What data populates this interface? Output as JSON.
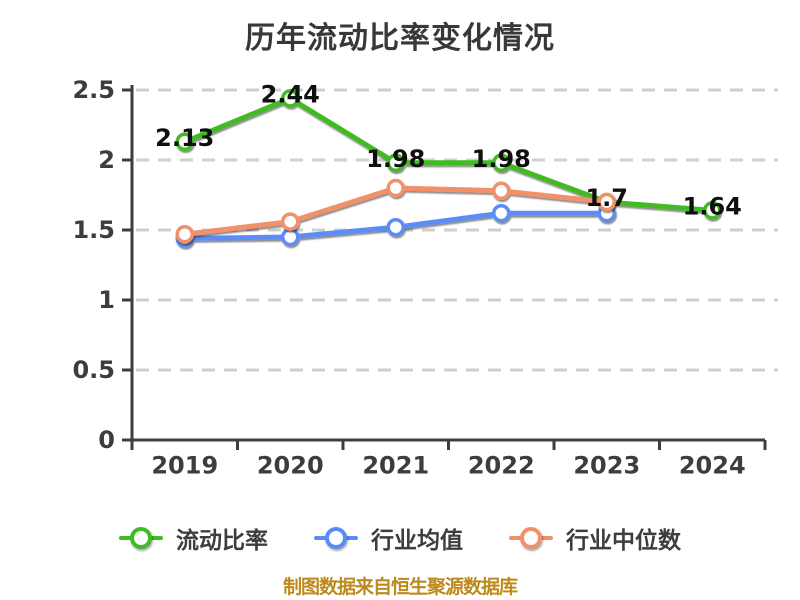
{
  "title": "历年流动比率变化情况",
  "footer": {
    "text": "制图数据来自恒生聚源数据库",
    "color": "#bd8a1e"
  },
  "chart_data": {
    "type": "line",
    "title": "历年流动比率变化情况",
    "categories": [
      "2019",
      "2020",
      "2021",
      "2022",
      "2023",
      "2024"
    ],
    "series": [
      {
        "name": "流动比率",
        "color": "#3fbc23",
        "values": [
          2.13,
          2.44,
          1.98,
          1.98,
          1.7,
          1.64
        ],
        "data_labels": [
          "2.13",
          "2.44",
          "1.98",
          "1.98",
          "1.7",
          "1.64"
        ]
      },
      {
        "name": "行业均值",
        "color": "#5b8cf5",
        "values": [
          1.44,
          1.45,
          1.52,
          1.62,
          1.62,
          null
        ],
        "data_labels": null
      },
      {
        "name": "行业中位数",
        "color": "#f29169",
        "values": [
          1.47,
          1.56,
          1.8,
          1.78,
          1.7,
          null
        ],
        "data_labels": null
      }
    ],
    "ylim": [
      0,
      2.5
    ],
    "yticks": [
      0,
      0.5,
      1,
      1.5,
      2,
      2.5
    ],
    "ytick_labels": [
      "0",
      "0.5",
      "1",
      "1.5",
      "2",
      "2.5"
    ],
    "grid": {
      "style": "dashed",
      "color": "#cfcfcf",
      "horizontal": true
    },
    "axis_color": "#3d3d3d",
    "tick_label_color": "#3d3d3d",
    "data_label_color": "#0f0f0f",
    "legend_position": "bottom"
  }
}
